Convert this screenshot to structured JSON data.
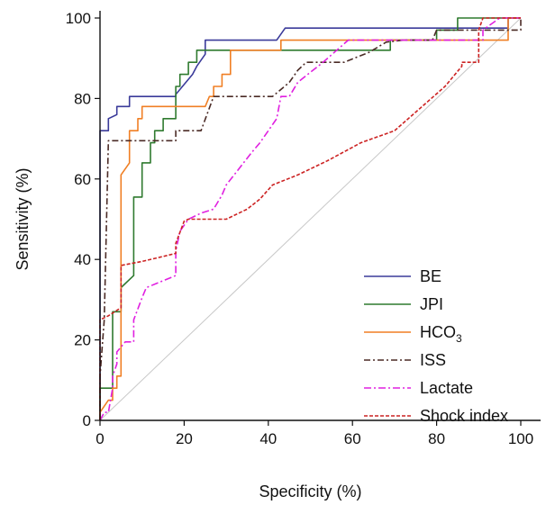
{
  "chart_data": {
    "type": "line",
    "title": "",
    "xlabel": "Specificity (%)",
    "ylabel": "Sensitivity (%)",
    "xlim": [
      0,
      100
    ],
    "ylim": [
      0,
      100
    ],
    "x_ticks": [
      "0",
      "20",
      "40",
      "60",
      "80",
      "100"
    ],
    "y_ticks": [
      "0",
      "20",
      "40",
      "60",
      "80",
      "100"
    ],
    "grid": false,
    "legend_position": "bottom-right",
    "reference_line": {
      "from": [
        0,
        0
      ],
      "to": [
        100,
        100
      ],
      "color": "#c8c8c8"
    },
    "series": [
      {
        "name": "BE",
        "color": "#3b3b9a",
        "dash": "",
        "points": [
          [
            0,
            0
          ],
          [
            0,
            72
          ],
          [
            2,
            72
          ],
          [
            2,
            75
          ],
          [
            4,
            76
          ],
          [
            4,
            78
          ],
          [
            6,
            78
          ],
          [
            7,
            78
          ],
          [
            7,
            80.5
          ],
          [
            10,
            80.5
          ],
          [
            18,
            80.5
          ],
          [
            18,
            81
          ],
          [
            22,
            86
          ],
          [
            23,
            88
          ],
          [
            25,
            91
          ],
          [
            25,
            94.5
          ],
          [
            42,
            94.5
          ],
          [
            44,
            97.5
          ],
          [
            97,
            97.5
          ],
          [
            97,
            100
          ],
          [
            100,
            100
          ]
        ]
      },
      {
        "name": "JPI",
        "color": "#2f7a2f",
        "dash": "",
        "points": [
          [
            0,
            0
          ],
          [
            0,
            8
          ],
          [
            3,
            8
          ],
          [
            3,
            27
          ],
          [
            5,
            27
          ],
          [
            5,
            33
          ],
          [
            8,
            36
          ],
          [
            8,
            55.5
          ],
          [
            10,
            55.5
          ],
          [
            10,
            64
          ],
          [
            12,
            64
          ],
          [
            12,
            69
          ],
          [
            13,
            69
          ],
          [
            13,
            72
          ],
          [
            15,
            72
          ],
          [
            15,
            75
          ],
          [
            18,
            75
          ],
          [
            18,
            83
          ],
          [
            19,
            83
          ],
          [
            19,
            86
          ],
          [
            21,
            86
          ],
          [
            21,
            89
          ],
          [
            23,
            89
          ],
          [
            23,
            92
          ],
          [
            69,
            92
          ],
          [
            69,
            94.5
          ],
          [
            80,
            94.5
          ],
          [
            80,
            97
          ],
          [
            85,
            97
          ],
          [
            85,
            100
          ],
          [
            100,
            100
          ]
        ]
      },
      {
        "name": "HCO",
        "subscript": "3",
        "color": "#f07f24",
        "dash": "",
        "points": [
          [
            0,
            0
          ],
          [
            0,
            2
          ],
          [
            2,
            5
          ],
          [
            3,
            5
          ],
          [
            3,
            8
          ],
          [
            4,
            8
          ],
          [
            4,
            11
          ],
          [
            5,
            11
          ],
          [
            5,
            61
          ],
          [
            7,
            64
          ],
          [
            7,
            72
          ],
          [
            9,
            72
          ],
          [
            9,
            75
          ],
          [
            10,
            75
          ],
          [
            10,
            78
          ],
          [
            13,
            78
          ],
          [
            18,
            78
          ],
          [
            20,
            78
          ],
          [
            25,
            78
          ],
          [
            26,
            80.5
          ],
          [
            27,
            80.5
          ],
          [
            27,
            83
          ],
          [
            29,
            83
          ],
          [
            29,
            86
          ],
          [
            31,
            86
          ],
          [
            31,
            92
          ],
          [
            43,
            92
          ],
          [
            43,
            94.5
          ],
          [
            92,
            94.5
          ],
          [
            97,
            94.5
          ],
          [
            97,
            100
          ],
          [
            100,
            100
          ]
        ]
      },
      {
        "name": "ISS",
        "color": "#4a2a25",
        "dash": "7,3,2,3",
        "points": [
          [
            0,
            0
          ],
          [
            0,
            11
          ],
          [
            1,
            25
          ],
          [
            2,
            69.5
          ],
          [
            18,
            69.5
          ],
          [
            18,
            72
          ],
          [
            24,
            72
          ],
          [
            27,
            80.5
          ],
          [
            41,
            80.5
          ],
          [
            45,
            84
          ],
          [
            47,
            87
          ],
          [
            49,
            89
          ],
          [
            58,
            89
          ],
          [
            64,
            91.5
          ],
          [
            68,
            94
          ],
          [
            72,
            94.5
          ],
          [
            79,
            94.5
          ],
          [
            80,
            97
          ],
          [
            100,
            97
          ],
          [
            100,
            100
          ]
        ]
      },
      {
        "name": "Lactate",
        "color": "#e020e0",
        "dash": "8,3,2,3",
        "points": [
          [
            0,
            0
          ],
          [
            1,
            2
          ],
          [
            2,
            2
          ],
          [
            3,
            8
          ],
          [
            3,
            11
          ],
          [
            4,
            14
          ],
          [
            4,
            17
          ],
          [
            6,
            19.5
          ],
          [
            8,
            19.5
          ],
          [
            8,
            25
          ],
          [
            10,
            30.5
          ],
          [
            11,
            33
          ],
          [
            18,
            36
          ],
          [
            18,
            42
          ],
          [
            19,
            47
          ],
          [
            21,
            50
          ],
          [
            24,
            51.5
          ],
          [
            27,
            52.5
          ],
          [
            29,
            56
          ],
          [
            30,
            58.5
          ],
          [
            33,
            62.5
          ],
          [
            36,
            66.5
          ],
          [
            38,
            69
          ],
          [
            40,
            72
          ],
          [
            42,
            75
          ],
          [
            43,
            80.5
          ],
          [
            45,
            80.5
          ],
          [
            47,
            84
          ],
          [
            50,
            86.5
          ],
          [
            53,
            89
          ],
          [
            59,
            94.5
          ],
          [
            91,
            94.5
          ],
          [
            91,
            97
          ],
          [
            95,
            100
          ],
          [
            100,
            100
          ]
        ]
      },
      {
        "name": "Shock index",
        "color": "#cc2222",
        "dash": "4,2",
        "points": [
          [
            0,
            0
          ],
          [
            0,
            25
          ],
          [
            2,
            26
          ],
          [
            5,
            28
          ],
          [
            5,
            38.5
          ],
          [
            10,
            39.5
          ],
          [
            14,
            40.5
          ],
          [
            18,
            41.5
          ],
          [
            18,
            44
          ],
          [
            20,
            49.5
          ],
          [
            21,
            50
          ],
          [
            30,
            50
          ],
          [
            35,
            52.5
          ],
          [
            38,
            55
          ],
          [
            41,
            58.5
          ],
          [
            47,
            61
          ],
          [
            54,
            64.5
          ],
          [
            62,
            69
          ],
          [
            70,
            72
          ],
          [
            76,
            77.5
          ],
          [
            82,
            83
          ],
          [
            86,
            88
          ],
          [
            86,
            89
          ],
          [
            90,
            89
          ],
          [
            90,
            97
          ],
          [
            91,
            100
          ],
          [
            100,
            100
          ]
        ]
      }
    ]
  }
}
